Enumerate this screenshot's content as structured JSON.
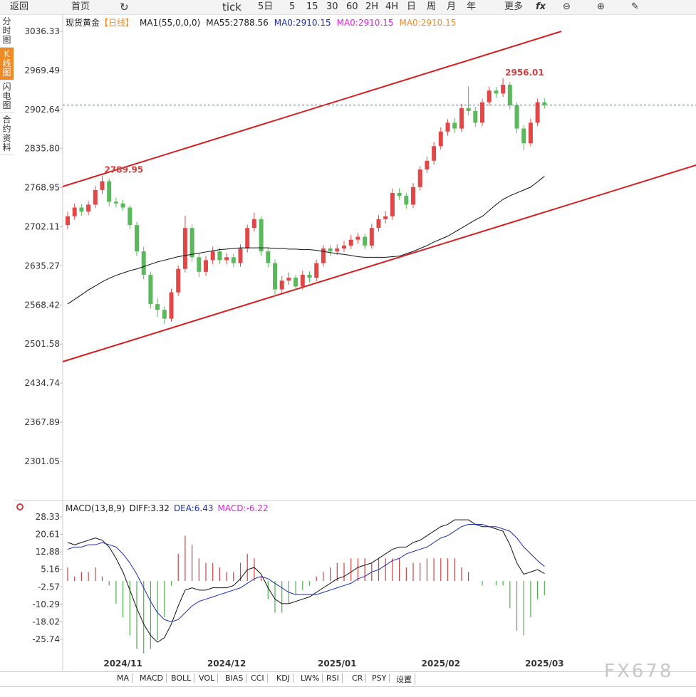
{
  "toolbar": [
    "返回",
    "首页",
    "tick",
    "5日",
    "5",
    "15",
    "30",
    "60",
    "2H",
    "4H",
    "日",
    "周",
    "月",
    "年",
    "更多"
  ],
  "sidebar": [
    "分时图",
    "K线图",
    "闪电图",
    "合约资料"
  ],
  "tabs": [
    "MA",
    "MACD",
    "BOLL",
    "VOL",
    "BIAS",
    "CCI",
    "KDJ",
    "LW%",
    "RSI",
    "CR",
    "PSY",
    "设置"
  ],
  "watermark": "FX678",
  "chart_data": [
    {
      "type": "candlestick",
      "instrument": "现货黄金",
      "period": "【日线】",
      "legend": [
        {
          "text": "MA1(55,0,0,0)",
          "color": "#222"
        },
        {
          "text": "MA55:2788.56",
          "color": "#222"
        },
        {
          "text": "MA0:2910.15",
          "color": "#1a2fb0"
        },
        {
          "text": "MA0:2910.15",
          "color": "#e020e0"
        },
        {
          "text": "MA0:2910.15",
          "color": "#f08a24"
        }
      ],
      "categories": [
        null,
        null,
        null,
        null,
        null,
        null,
        null,
        null,
        "2024/11",
        null,
        null,
        null,
        null,
        null,
        null,
        null,
        null,
        null,
        null,
        null,
        null,
        null,
        null,
        "2024/12",
        null,
        null,
        null,
        null,
        null,
        null,
        null,
        null,
        null,
        null,
        null,
        null,
        null,
        null,
        null,
        "2025/01",
        null,
        null,
        null,
        null,
        null,
        null,
        null,
        null,
        null,
        null,
        null,
        null,
        null,
        null,
        "2025/02",
        null,
        null,
        null,
        null,
        null,
        null,
        null,
        null,
        null,
        null,
        null,
        null,
        null,
        null,
        "2025/03"
      ],
      "open": [
        2705,
        2720,
        2735,
        2728,
        2740,
        2765,
        2780,
        2745,
        2742,
        2735,
        2705,
        2660,
        2620,
        2570,
        2560,
        2545,
        2590,
        2630,
        2700,
        2650,
        2625,
        2645,
        2660,
        2645,
        2650,
        2640,
        2665,
        2700,
        2715,
        2660,
        2640,
        2595,
        2610,
        2615,
        2600,
        2620,
        2615,
        2640,
        2665,
        2660,
        2665,
        2670,
        2680,
        2685,
        2670,
        2700,
        2715,
        2720,
        2760,
        2755,
        2740,
        2770,
        2800,
        2815,
        2840,
        2865,
        2880,
        2870,
        2905,
        2900,
        2880,
        2915,
        2935,
        2930,
        2945,
        2910,
        2870,
        2845,
        2880,
        2915
      ],
      "high": [
        2728,
        2742,
        2741,
        2746,
        2772,
        2789.95,
        2785,
        2752,
        2748,
        2739,
        2710,
        2668,
        2625,
        2580,
        2566,
        2596,
        2636,
        2721,
        2706,
        2656,
        2652,
        2668,
        2666,
        2657,
        2656,
        2672,
        2706,
        2726,
        2720,
        2666,
        2646,
        2618,
        2624,
        2620,
        2627,
        2626,
        2646,
        2671,
        2670,
        2672,
        2678,
        2688,
        2692,
        2690,
        2707,
        2722,
        2729,
        2767,
        2768,
        2760,
        2777,
        2806,
        2822,
        2847,
        2872,
        2886,
        2888,
        2912,
        2942,
        2907,
        2921,
        2942,
        2941,
        2956.01,
        2950,
        2915,
        2876,
        2887,
        2921,
        2922
      ],
      "low": [
        2698,
        2714,
        2721,
        2722,
        2734,
        2758,
        2738,
        2735,
        2729,
        2698,
        2652,
        2612,
        2562,
        2548,
        2536,
        2540,
        2584,
        2624,
        2642,
        2616,
        2618,
        2638,
        2639,
        2638,
        2633,
        2634,
        2658,
        2694,
        2652,
        2633,
        2583,
        2588,
        2603,
        2594,
        2595,
        2607,
        2609,
        2634,
        2652,
        2654,
        2659,
        2664,
        2673,
        2664,
        2665,
        2694,
        2708,
        2714,
        2748,
        2733,
        2734,
        2764,
        2794,
        2808,
        2834,
        2858,
        2862,
        2864,
        2893,
        2873,
        2874,
        2909,
        2923,
        2924,
        2903,
        2862,
        2833,
        2840,
        2874,
        2904
      ],
      "close": [
        2720,
        2735,
        2728,
        2740,
        2765,
        2780,
        2745,
        2742,
        2735,
        2705,
        2660,
        2620,
        2570,
        2560,
        2545,
        2590,
        2630,
        2700,
        2650,
        2625,
        2645,
        2660,
        2645,
        2650,
        2640,
        2665,
        2700,
        2715,
        2660,
        2640,
        2595,
        2610,
        2615,
        2600,
        2620,
        2615,
        2640,
        2665,
        2660,
        2665,
        2670,
        2680,
        2685,
        2670,
        2700,
        2715,
        2720,
        2760,
        2755,
        2740,
        2770,
        2800,
        2815,
        2840,
        2865,
        2880,
        2870,
        2905,
        2900,
        2880,
        2915,
        2935,
        2930,
        2945,
        2910,
        2870,
        2845,
        2880,
        2915,
        2910.15
      ],
      "up_color": "#e04848",
      "down_color": "#5cb85c",
      "ma55": {
        "color": "#111",
        "values": [
          2570,
          2578,
          2586,
          2594,
          2601,
          2608,
          2614,
          2619,
          2623,
          2627,
          2630,
          2634,
          2638,
          2642,
          2645,
          2648,
          2651,
          2653,
          2655,
          2657,
          2659,
          2661,
          2663,
          2664,
          2665,
          2666,
          2666,
          2666,
          2666,
          2666,
          2665,
          2665,
          2664,
          2664,
          2663,
          2663,
          2662,
          2660,
          2658,
          2656,
          2655,
          2653,
          2651,
          2650,
          2650,
          2650,
          2650,
          2651,
          2652,
          2656,
          2660,
          2665,
          2670,
          2676,
          2681,
          2686,
          2693,
          2700,
          2707,
          2714,
          2720,
          2730,
          2740,
          2749,
          2755,
          2760,
          2765,
          2770,
          2779,
          2788.56
        ]
      },
      "ylim": [
        2237.7,
        3063.1
      ],
      "yticks": [
        3036.33,
        2969.49,
        2902.64,
        {
          "value": 2835.8,
          "label": "2835.80"
        },
        2768.95,
        2702.11,
        2635.27,
        2568.42,
        2501.58,
        2434.74,
        2367.89,
        2301.05
      ]
    },
    {
      "type": "macd",
      "title": "MACD(13,8,9)",
      "series": [
        {
          "name": "DIFF:3.32",
          "color": "#111",
          "values": [
            17,
            16,
            17,
            18,
            19,
            18,
            15,
            10,
            4,
            -4,
            -12,
            -19,
            -24,
            -27,
            -25,
            -19,
            -11,
            -4,
            -3,
            -4,
            -4,
            -3,
            -3,
            -3,
            -2,
            1,
            5,
            6,
            3,
            -3,
            -8,
            -10,
            -10,
            -9,
            -8,
            -7,
            -5,
            -3,
            -1,
            1,
            2,
            4,
            6,
            7,
            8,
            10,
            12,
            14,
            15,
            15,
            17,
            18,
            20,
            22,
            24,
            25,
            27,
            27,
            27,
            25,
            24,
            24,
            23,
            22,
            16,
            8,
            3,
            4,
            5,
            3.32
          ]
        },
        {
          "name": "DEA:6.43",
          "color": "#1a2fb0",
          "values": [
            14,
            15,
            15,
            16,
            16,
            17,
            16,
            15,
            12,
            8,
            3,
            -3,
            -9,
            -14,
            -17,
            -18,
            -17,
            -14,
            -11,
            -9,
            -8,
            -7,
            -6,
            -5,
            -4,
            -3,
            -1,
            1,
            2,
            1,
            -1,
            -3,
            -5,
            -6,
            -6,
            -6,
            -6,
            -5,
            -4,
            -3,
            -2,
            -1,
            1,
            2,
            4,
            5,
            7,
            9,
            10,
            12,
            13,
            14,
            15,
            17,
            19,
            20,
            22,
            24,
            25,
            25,
            25,
            24,
            24,
            23,
            22,
            19,
            15,
            12,
            9,
            6.43
          ]
        },
        {
          "name": "MACD:-6.22",
          "color": "#e020e0",
          "up_color": "#d04040",
          "down_color": "#4caf50",
          "values": [
            6,
            2,
            4,
            4,
            6,
            2,
            -2,
            -10,
            -16,
            -24,
            -30,
            -32,
            -30,
            -26,
            -16,
            -2,
            12,
            20,
            16,
            10,
            8,
            8,
            6,
            4,
            4,
            8,
            12,
            10,
            2,
            -8,
            -14,
            -14,
            -10,
            -6,
            -4,
            -2,
            2,
            4,
            6,
            8,
            8,
            10,
            10,
            10,
            8,
            10,
            10,
            10,
            10,
            6,
            8,
            8,
            10,
            10,
            10,
            10,
            10,
            6,
            4,
            0,
            -2,
            0,
            -2,
            -2,
            -12,
            -22,
            -24,
            -16,
            -8,
            -6.22
          ]
        }
      ],
      "ylim": [
        -35.8,
        34.6
      ],
      "yticks": [
        28.33,
        20.61,
        12.88,
        5.16,
        -2.57,
        -10.29,
        -18.02,
        -25.74
      ]
    }
  ]
}
